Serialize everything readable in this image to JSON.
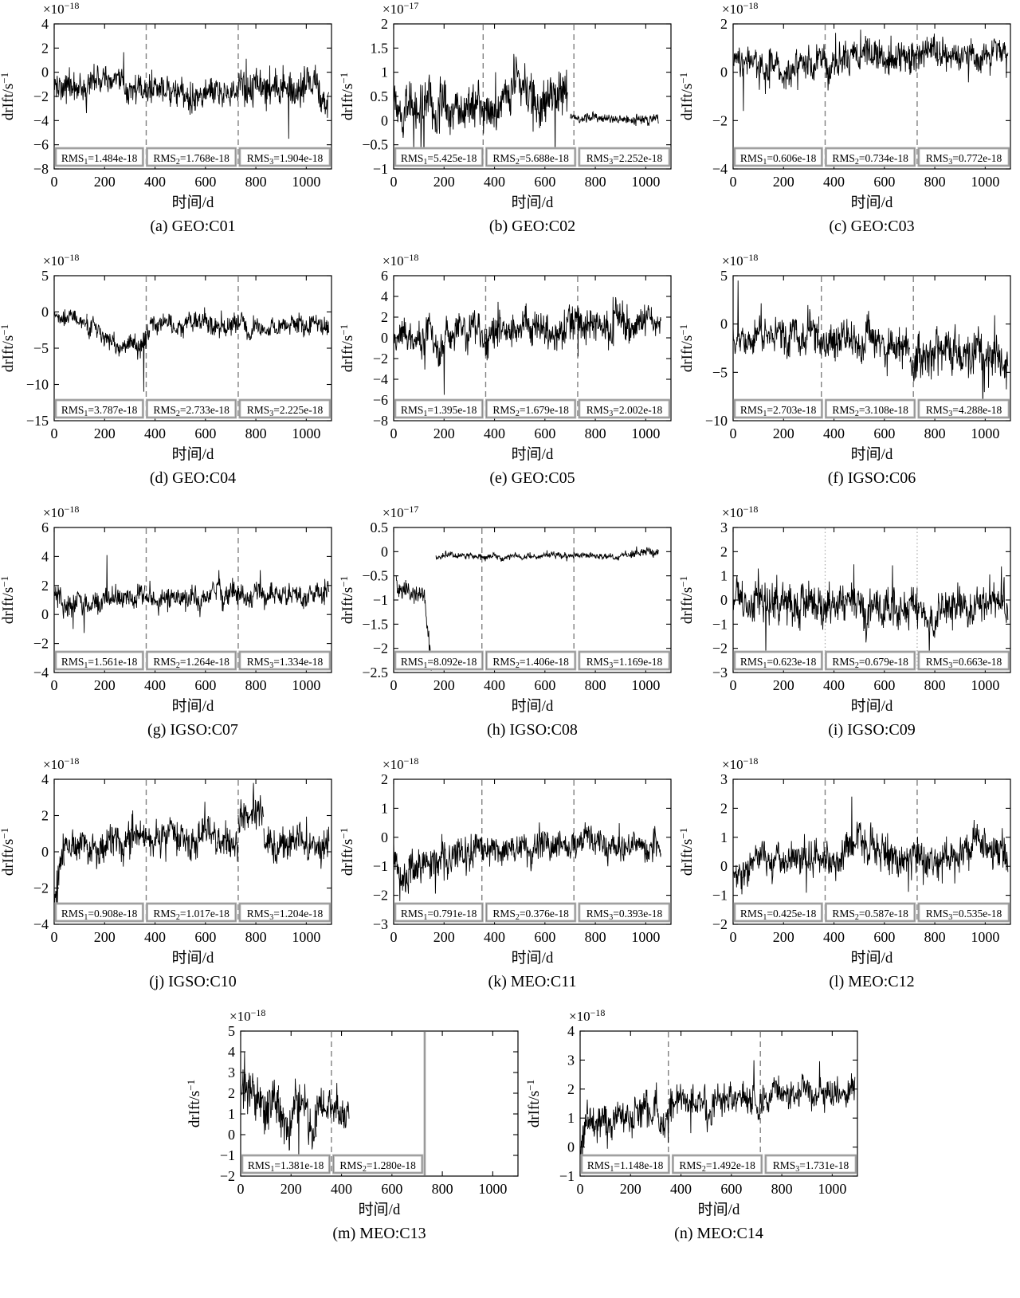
{
  "figure": {
    "ylabel_base": "drIft/s",
    "ylabel_exp": "−1",
    "xlabel": "时间/d",
    "line_color": "#000000",
    "vline_color": "#808080",
    "dotted_vline_color": "#aaaaaa",
    "rms_box_border": "#8c8c8c",
    "rms_prefix": "RMS",
    "xticks": [
      0,
      200,
      400,
      600,
      800,
      1000
    ],
    "xlim": [
      0,
      1100
    ]
  },
  "chart_data": [
    {
      "key": "a",
      "type": "line",
      "title": "(a) GEO:C01",
      "group": "GEO",
      "sat": "C01",
      "scale_base": "×10",
      "scale_exp": "−18",
      "ylim": [
        -8,
        4
      ],
      "yticks": [
        4,
        2,
        0,
        -2,
        -4,
        -6,
        -8
      ],
      "vlines": [
        {
          "x": 365,
          "style": "dashed"
        },
        {
          "x": 730,
          "style": "dashed"
        }
      ],
      "rms": [
        {
          "sub": "1",
          "value": "1.484e-18"
        },
        {
          "sub": "2",
          "value": "1.768e-18"
        },
        {
          "sub": "3",
          "value": "1.904e-18"
        }
      ],
      "series_summary": {
        "segments": [
          [
            0,
            360,
            -1.0,
            -1.3,
            1.2
          ],
          [
            360,
            730,
            -1.8,
            -1.8,
            1.2
          ],
          [
            730,
            1090,
            -1.2,
            -1.6,
            1.6
          ]
        ],
        "spikes": [
          [
            930,
            -5.5
          ]
        ]
      }
    },
    {
      "key": "b",
      "type": "line",
      "title": "(b) GEO:C02",
      "group": "GEO",
      "sat": "C02",
      "scale_base": "×10",
      "scale_exp": "−17",
      "ylim": [
        -1,
        2
      ],
      "yticks": [
        2,
        1.5,
        1,
        0.5,
        0,
        -0.5,
        -1
      ],
      "vlines": [
        {
          "x": 355,
          "style": "dashed"
        },
        {
          "x": 715,
          "style": "dashed"
        }
      ],
      "rms": [
        {
          "sub": "1",
          "value": "5.425e-18"
        },
        {
          "sub": "2",
          "value": "5.688e-18"
        },
        {
          "sub": "3",
          "value": "2.252e-18"
        }
      ],
      "series_summary": {
        "segments": [
          [
            0,
            690,
            0.38,
            0.42,
            0.5
          ],
          [
            700,
            1050,
            0.06,
            0.0,
            0.1
          ]
        ],
        "spikes": [
          [
            120,
            -0.95
          ],
          [
            640,
            -0.85
          ]
        ]
      }
    },
    {
      "key": "c",
      "type": "line",
      "title": "(c) GEO:C03",
      "group": "GEO",
      "sat": "C03",
      "scale_base": "×10",
      "scale_exp": "−18",
      "ylim": [
        -4,
        2
      ],
      "yticks": [
        2,
        0,
        -2,
        -4
      ],
      "vlines": [
        {
          "x": 365,
          "style": "dashed"
        },
        {
          "x": 730,
          "style": "dashed"
        }
      ],
      "rms": [
        {
          "sub": "1",
          "value": "0.606e-18"
        },
        {
          "sub": "2",
          "value": "0.734e-18"
        },
        {
          "sub": "3",
          "value": "0.772e-18"
        }
      ],
      "series_summary": {
        "segments": [
          [
            0,
            360,
            0.2,
            0.5,
            0.65
          ],
          [
            360,
            730,
            0.6,
            0.6,
            0.75
          ],
          [
            730,
            1090,
            0.85,
            0.6,
            0.65
          ]
        ],
        "spikes": [
          [
            40,
            -1.6
          ]
        ]
      }
    },
    {
      "key": "d",
      "type": "line",
      "title": "(d) GEO:C04",
      "group": "GEO",
      "sat": "C04",
      "scale_base": "×10",
      "scale_exp": "−18",
      "ylim": [
        -15,
        5
      ],
      "yticks": [
        5,
        0,
        -5,
        -10,
        -15
      ],
      "vlines": [
        {
          "x": 365,
          "style": "dashed"
        },
        {
          "x": 730,
          "style": "dashed"
        }
      ],
      "rms": [
        {
          "sub": "1",
          "value": "3.787e-18"
        },
        {
          "sub": "2",
          "value": "2.733e-18"
        },
        {
          "sub": "3",
          "value": "2.225e-18"
        }
      ],
      "series_summary": {
        "segments": [
          [
            0,
            130,
            -0.8,
            -1.0,
            0.9
          ],
          [
            130,
            340,
            -2.5,
            -5.5,
            1.5
          ],
          [
            340,
            380,
            -6.0,
            -2.0,
            2.2
          ],
          [
            380,
            1090,
            -1.5,
            -2.2,
            1.5
          ]
        ],
        "spikes": [
          [
            355,
            -11.0
          ]
        ]
      }
    },
    {
      "key": "e",
      "type": "line",
      "title": "(e) GEO:C05",
      "group": "GEO",
      "sat": "C05",
      "scale_base": "×10",
      "scale_exp": "−18",
      "ylim": [
        -8,
        6
      ],
      "yticks": [
        6,
        4,
        2,
        0,
        -2,
        -4,
        -6,
        -8
      ],
      "vlines": [
        {
          "x": 365,
          "style": "dashed"
        },
        {
          "x": 730,
          "style": "dashed"
        }
      ],
      "rms": [
        {
          "sub": "1",
          "value": "1.395e-18"
        },
        {
          "sub": "2",
          "value": "1.679e-18"
        },
        {
          "sub": "3",
          "value": "2.002e-18"
        }
      ],
      "series_summary": {
        "segments": [
          [
            0,
            360,
            -0.5,
            0.3,
            1.8
          ],
          [
            360,
            730,
            0.5,
            1.0,
            1.8
          ],
          [
            730,
            1060,
            1.2,
            1.8,
            1.8
          ]
        ],
        "spikes": [
          [
            200,
            -5.5
          ]
        ]
      }
    },
    {
      "key": "f",
      "type": "line",
      "title": "(f) IGSO:C06",
      "group": "IGSO",
      "sat": "C06",
      "scale_base": "×10",
      "scale_exp": "−18",
      "ylim": [
        -10,
        5
      ],
      "yticks": [
        5,
        0,
        -5,
        -10
      ],
      "vlines": [
        {
          "x": 350,
          "style": "dashed"
        },
        {
          "x": 715,
          "style": "dashed"
        }
      ],
      "rms": [
        {
          "sub": "1",
          "value": "2.703e-18"
        },
        {
          "sub": "2",
          "value": "3.108e-18"
        },
        {
          "sub": "3",
          "value": "4.288e-18"
        }
      ],
      "series_summary": {
        "segments": [
          [
            0,
            340,
            -1.0,
            -1.5,
            2.0
          ],
          [
            340,
            700,
            -1.5,
            -2.0,
            2.0
          ],
          [
            700,
            1090,
            -3.5,
            -3.0,
            2.5
          ]
        ],
        "spikes": [
          [
            990,
            -9.0
          ],
          [
            20,
            4.5
          ]
        ]
      }
    },
    {
      "key": "g",
      "type": "line",
      "title": "(g) IGSO:C07",
      "group": "IGSO",
      "sat": "C07",
      "scale_base": "×10",
      "scale_exp": "−18",
      "ylim": [
        -4,
        6
      ],
      "yticks": [
        6,
        4,
        2,
        0,
        -2,
        -4
      ],
      "vlines": [
        {
          "x": 365,
          "style": "dashed"
        },
        {
          "x": 730,
          "style": "dashed"
        }
      ],
      "rms": [
        {
          "sub": "1",
          "value": "1.561e-18"
        },
        {
          "sub": "2",
          "value": "1.264e-18"
        },
        {
          "sub": "3",
          "value": "1.334e-18"
        }
      ],
      "series_summary": {
        "segments": [
          [
            0,
            60,
            1.8,
            0.2,
            0.8
          ],
          [
            60,
            360,
            0.8,
            1.5,
            0.85
          ],
          [
            360,
            730,
            1.2,
            1.4,
            0.85
          ],
          [
            730,
            1090,
            1.3,
            1.5,
            0.85
          ]
        ],
        "spikes": [
          [
            75,
            -1.0
          ],
          [
            210,
            4.1
          ]
        ]
      }
    },
    {
      "key": "h",
      "type": "line",
      "title": "(h) IGSO:C08",
      "group": "IGSO",
      "sat": "C08",
      "scale_base": "×10",
      "scale_exp": "−17",
      "ylim": [
        -2.5,
        0.5
      ],
      "yticks": [
        0.5,
        0,
        -0.5,
        -1,
        -1.5,
        -2,
        -2.5
      ],
      "vlines": [
        {
          "x": 350,
          "style": "dashed"
        },
        {
          "x": 715,
          "style": "dashed"
        }
      ],
      "rms": [
        {
          "sub": "1",
          "value": "8.092e-18"
        },
        {
          "sub": "2",
          "value": "1.406e-18"
        },
        {
          "sub": "3",
          "value": "1.169e-18"
        }
      ],
      "series_summary": {
        "segments": [
          [
            10,
            125,
            -0.62,
            -1.0,
            0.22
          ],
          [
            125,
            152,
            -1.1,
            -2.1,
            0.3
          ],
          [
            168,
            930,
            -0.1,
            -0.08,
            0.07
          ],
          [
            930,
            1050,
            -0.04,
            0.0,
            0.09
          ]
        ],
        "spikes": [
          [
            150,
            -2.38
          ]
        ]
      }
    },
    {
      "key": "i",
      "type": "line",
      "title": "(i) IGSO:C09",
      "group": "IGSO",
      "sat": "C09",
      "scale_base": "×10",
      "scale_exp": "−18",
      "ylim": [
        -3,
        3
      ],
      "yticks": [
        3,
        2,
        1,
        0,
        -1,
        -2,
        -3
      ],
      "vlines": [
        {
          "x": 365,
          "style": "dotted"
        },
        {
          "x": 730,
          "style": "dotted"
        }
      ],
      "rms": [
        {
          "sub": "1",
          "value": "0.623e-18"
        },
        {
          "sub": "2",
          "value": "0.679e-18"
        },
        {
          "sub": "3",
          "value": "0.663e-18"
        }
      ],
      "series_summary": {
        "segments": [
          [
            0,
            360,
            0.0,
            -0.3,
            0.9
          ],
          [
            360,
            730,
            -0.1,
            -0.4,
            0.9
          ],
          [
            730,
            1090,
            -0.4,
            -0.2,
            0.8
          ]
        ],
        "spikes": [
          [
            130,
            -2.4
          ]
        ]
      }
    },
    {
      "key": "j",
      "type": "line",
      "title": "(j) IGSO:C10",
      "group": "IGSO",
      "sat": "C10",
      "scale_base": "×10",
      "scale_exp": "−18",
      "ylim": [
        -4,
        4
      ],
      "yticks": [
        4,
        2,
        0,
        -2,
        -4
      ],
      "vlines": [
        {
          "x": 365,
          "style": "dashed"
        },
        {
          "x": 730,
          "style": "dashed"
        }
      ],
      "rms": [
        {
          "sub": "1",
          "value": "0.908e-18"
        },
        {
          "sub": "2",
          "value": "1.017e-18"
        },
        {
          "sub": "3",
          "value": "1.204e-18"
        }
      ],
      "series_summary": {
        "segments": [
          [
            0,
            40,
            -2.5,
            0.0,
            1.0
          ],
          [
            40,
            360,
            0.3,
            0.8,
            1.0
          ],
          [
            360,
            730,
            0.8,
            0.8,
            1.0
          ],
          [
            730,
            830,
            1.5,
            2.0,
            1.0
          ],
          [
            830,
            1090,
            0.5,
            0.5,
            1.0
          ]
        ],
        "spikes": [
          [
            12,
            -3.2
          ],
          [
            790,
            3.8
          ]
        ]
      }
    },
    {
      "key": "k",
      "type": "line",
      "title": "(k) MEO:C11",
      "group": "MEO",
      "sat": "C11",
      "scale_base": "×10",
      "scale_exp": "−18",
      "ylim": [
        -3,
        2
      ],
      "yticks": [
        2,
        1,
        0,
        -1,
        -2,
        -3
      ],
      "vlines": [
        {
          "x": 350,
          "style": "dashed"
        },
        {
          "x": 715,
          "style": "dashed"
        }
      ],
      "rms": [
        {
          "sub": "1",
          "value": "0.791e-18"
        },
        {
          "sub": "2",
          "value": "0.376e-18"
        },
        {
          "sub": "3",
          "value": "0.393e-18"
        }
      ],
      "series_summary": {
        "segments": [
          [
            0,
            60,
            -0.5,
            -1.5,
            0.7
          ],
          [
            60,
            360,
            -0.7,
            -0.5,
            0.7
          ],
          [
            360,
            1060,
            -0.3,
            -0.2,
            0.55
          ]
        ],
        "spikes": [
          [
            25,
            -2.2
          ]
        ]
      }
    },
    {
      "key": "l",
      "type": "line",
      "title": "(l) MEO:C12",
      "group": "MEO",
      "sat": "C12",
      "scale_base": "×10",
      "scale_exp": "−18",
      "ylim": [
        -2,
        3
      ],
      "yticks": [
        3,
        2,
        1,
        0,
        -1,
        -2
      ],
      "vlines": [
        {
          "x": 365,
          "style": "dashed"
        },
        {
          "x": 730,
          "style": "dashed"
        }
      ],
      "rms": [
        {
          "sub": "1",
          "value": "0.425e-18"
        },
        {
          "sub": "2",
          "value": "0.587e-18"
        },
        {
          "sub": "3",
          "value": "0.535e-18"
        }
      ],
      "series_summary": {
        "segments": [
          [
            0,
            100,
            -0.3,
            0.0,
            0.6
          ],
          [
            100,
            360,
            0.1,
            0.2,
            0.6
          ],
          [
            360,
            560,
            0.3,
            0.8,
            0.7
          ],
          [
            560,
            1090,
            0.4,
            0.5,
            0.7
          ]
        ],
        "spikes": [
          [
            470,
            2.4
          ]
        ]
      }
    },
    {
      "key": "m",
      "type": "line",
      "title": "(m) MEO:C13",
      "group": "MEO",
      "sat": "C13",
      "scale_base": "×10",
      "scale_exp": "−18",
      "ylim": [
        -2,
        5
      ],
      "yticks": [
        5,
        4,
        3,
        2,
        1,
        0,
        -1,
        -2
      ],
      "vlines": [
        {
          "x": 360,
          "style": "dashed"
        },
        {
          "x": 730,
          "style": "solid"
        }
      ],
      "rms": [
        {
          "sub": "1",
          "value": "1.381e-18"
        },
        {
          "sub": "2",
          "value": "1.280e-18"
        }
      ],
      "series_summary": {
        "segments": [
          [
            5,
            150,
            2.0,
            1.5,
            1.3
          ],
          [
            150,
            300,
            1.0,
            0.8,
            1.2
          ],
          [
            300,
            430,
            1.2,
            1.0,
            0.8
          ]
        ],
        "spikes": [
          [
            15,
            4.0
          ],
          [
            230,
            -1.2
          ]
        ]
      }
    },
    {
      "key": "n",
      "type": "line",
      "title": "(n) MEO:C14",
      "group": "MEO",
      "sat": "C14",
      "scale_base": "×10",
      "scale_exp": "−18",
      "ylim": [
        -1,
        4
      ],
      "yticks": [
        4,
        3,
        2,
        1,
        0,
        -1
      ],
      "vlines": [
        {
          "x": 350,
          "style": "dashed"
        },
        {
          "x": 715,
          "style": "dashed"
        }
      ],
      "rms": [
        {
          "sub": "1",
          "value": "1.148e-18"
        },
        {
          "sub": "2",
          "value": "1.492e-18"
        },
        {
          "sub": "3",
          "value": "1.731e-18"
        }
      ],
      "series_summary": {
        "segments": [
          [
            0,
            30,
            0.3,
            1.0,
            0.7
          ],
          [
            30,
            340,
            1.0,
            1.2,
            0.7
          ],
          [
            340,
            480,
            1.3,
            1.8,
            0.6
          ],
          [
            480,
            730,
            1.5,
            1.6,
            0.6
          ],
          [
            730,
            1090,
            1.8,
            1.9,
            0.5
          ]
        ],
        "spikes": [
          [
            10,
            -0.5
          ]
        ]
      }
    }
  ]
}
